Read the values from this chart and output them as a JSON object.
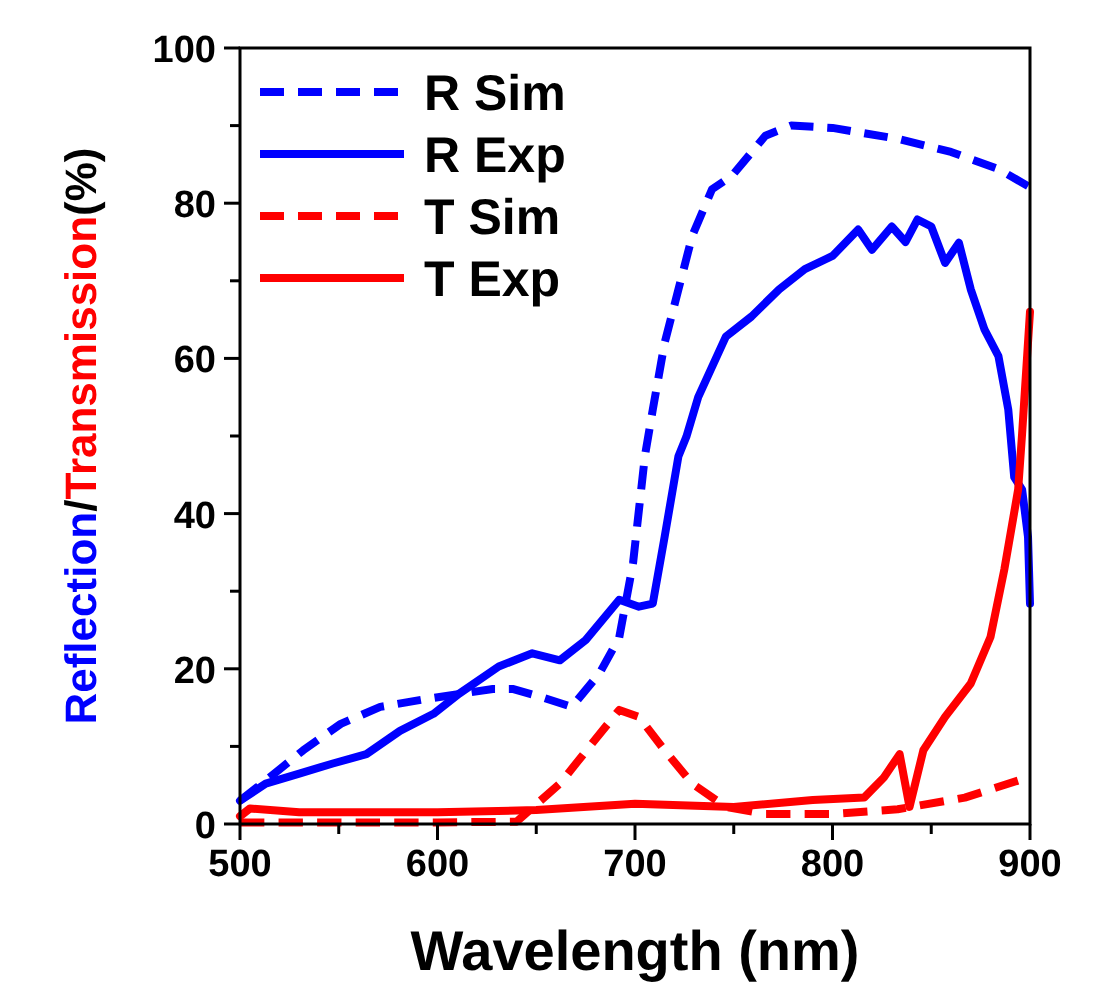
{
  "chart_data": {
    "type": "line",
    "xlabel": "Wavelength (nm)",
    "ylabel": "Reflection/Transmission(%)",
    "xlim": [
      500,
      900
    ],
    "ylim": [
      0,
      100
    ],
    "xticks": [
      500,
      600,
      700,
      800,
      900
    ],
    "yticks": [
      0,
      20,
      40,
      60,
      80,
      100
    ],
    "grid": false,
    "legend": "top left",
    "series": [
      {
        "name": "R Sim",
        "color": "#0000ff",
        "line_style": "dashed",
        "x": [
          500,
          515,
          532,
          551,
          571,
          594,
          628,
          638,
          652,
          668,
          682,
          692,
          699,
          705,
          709,
          715,
          722,
          729,
          739,
          749,
          766,
          779,
          800,
          833,
          860,
          884,
          899
        ],
        "values": [
          3,
          6,
          9.5,
          12.9,
          15.1,
          16.1,
          17.4,
          17.4,
          16.4,
          15.1,
          19.4,
          24,
          33.6,
          47.4,
          53.4,
          62,
          68.9,
          75.8,
          81.8,
          83.5,
          88.7,
          90,
          89.7,
          88.3,
          86.6,
          84.4,
          82.2
        ]
      },
      {
        "name": "R Exp",
        "color": "#0000ff",
        "line_style": "solid",
        "x": [
          500,
          513,
          530,
          547,
          564,
          581,
          598,
          611,
          631,
          648,
          662,
          675,
          692,
          702,
          709,
          715,
          722,
          726,
          732,
          746,
          759,
          773,
          786,
          800,
          813,
          820,
          830,
          837,
          843,
          850,
          857,
          864,
          870,
          877,
          884,
          889,
          892,
          896,
          899,
          900
        ],
        "values": [
          3,
          5.2,
          6.5,
          7.8,
          9,
          12,
          14.2,
          16.8,
          20.3,
          22,
          21.1,
          23.7,
          28.9,
          28,
          28.4,
          37,
          47.4,
          49.9,
          55,
          62.8,
          65.4,
          68.9,
          71.5,
          73.2,
          76.6,
          74,
          77,
          75,
          77.9,
          77,
          72.3,
          74.9,
          68.9,
          63.7,
          60.3,
          53.4,
          44.7,
          43.1,
          37,
          28.4
        ]
      },
      {
        "name": "T Sim",
        "color": "#ff0000",
        "line_style": "dashed",
        "x": [
          500,
          600,
          640,
          662,
          678,
          692,
          702,
          715,
          729,
          746,
          766,
          800,
          833,
          867,
          894
        ],
        "values": [
          0.2,
          0.2,
          0.3,
          5.2,
          10.3,
          14.7,
          13.8,
          9.5,
          5.2,
          2.2,
          1.3,
          1.3,
          1.9,
          3.4,
          5.6
        ]
      },
      {
        "name": "T Exp",
        "color": "#ff0000",
        "line_style": "solid",
        "x": [
          500,
          505,
          530,
          600,
          650,
          700,
          750,
          790,
          816,
          826,
          834,
          839,
          846,
          857,
          870,
          880,
          887,
          894,
          896,
          900
        ],
        "values": [
          1,
          2,
          1.5,
          1.5,
          1.8,
          2.6,
          2.2,
          3.1,
          3.4,
          6,
          9,
          2.2,
          9.5,
          13.8,
          18.1,
          24.1,
          32.8,
          43.1,
          50.3,
          66
        ]
      }
    ]
  }
}
